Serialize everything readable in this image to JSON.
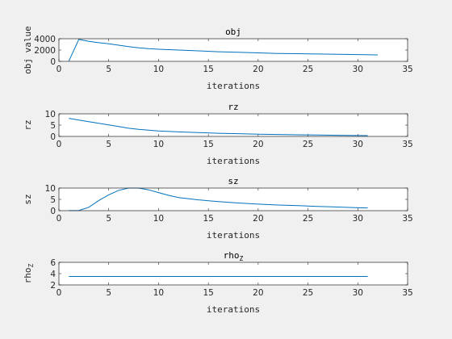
{
  "chart_data": [
    {
      "type": "line",
      "title": "obj",
      "xlabel": "iterations",
      "ylabel": "obj value",
      "xlim": [
        0,
        35
      ],
      "ylim": [
        0,
        4000
      ],
      "xticks": [
        0,
        5,
        10,
        15,
        20,
        25,
        30,
        35
      ],
      "yticks": [
        0,
        2000,
        4000
      ],
      "series": [
        {
          "color": "#0072bd",
          "x": [
            1,
            2,
            3,
            4,
            5,
            6,
            7,
            8,
            9,
            10,
            12,
            14,
            16,
            18,
            20,
            22,
            24,
            26,
            28,
            30,
            32
          ],
          "y": [
            50,
            3900,
            3550,
            3300,
            3100,
            2850,
            2600,
            2400,
            2250,
            2150,
            2000,
            1850,
            1700,
            1600,
            1500,
            1400,
            1350,
            1300,
            1250,
            1200,
            1150
          ]
        }
      ]
    },
    {
      "type": "line",
      "title": "rz",
      "xlabel": "iterations",
      "ylabel": "rz",
      "xlim": [
        0,
        35
      ],
      "ylim": [
        0,
        10
      ],
      "xticks": [
        0,
        5,
        10,
        15,
        20,
        25,
        30,
        35
      ],
      "yticks": [
        0,
        5,
        10
      ],
      "series": [
        {
          "color": "#0072bd",
          "x": [
            1,
            2,
            3,
            4,
            5,
            6,
            7,
            8,
            10,
            12,
            14,
            16,
            18,
            20,
            22,
            24,
            26,
            28,
            30,
            31
          ],
          "y": [
            8,
            7.2,
            6.5,
            5.8,
            5.1,
            4.4,
            3.6,
            3.1,
            2.4,
            2.0,
            1.7,
            1.4,
            1.2,
            1.0,
            0.85,
            0.7,
            0.6,
            0.5,
            0.4,
            0.35
          ]
        }
      ]
    },
    {
      "type": "line",
      "title": "sz",
      "xlabel": "iterations",
      "ylabel": "sz",
      "xlim": [
        0,
        35
      ],
      "ylim": [
        0,
        10
      ],
      "xticks": [
        0,
        5,
        10,
        15,
        20,
        25,
        30,
        35
      ],
      "yticks": [
        0,
        5,
        10
      ],
      "series": [
        {
          "color": "#0072bd",
          "x": [
            1,
            2,
            3,
            4,
            5,
            6,
            7,
            8,
            9,
            10,
            11,
            12,
            14,
            16,
            18,
            20,
            22,
            24,
            26,
            28,
            30,
            31
          ],
          "y": [
            0.05,
            0.1,
            1.5,
            4.5,
            7.0,
            9.0,
            10.0,
            10.0,
            9.2,
            8.0,
            6.8,
            5.8,
            4.8,
            4.0,
            3.4,
            2.9,
            2.5,
            2.2,
            1.9,
            1.6,
            1.3,
            1.2
          ]
        }
      ]
    },
    {
      "type": "line",
      "title": "rho",
      "title_subscript": "Z",
      "xlabel": "iterations",
      "ylabel": "rho",
      "ylabel_subscript": "Z",
      "xlim": [
        0,
        35
      ],
      "ylim": [
        2,
        6
      ],
      "xticks": [
        0,
        5,
        10,
        15,
        20,
        25,
        30,
        35
      ],
      "yticks": [
        2,
        4,
        6
      ],
      "series": [
        {
          "color": "#0072bd",
          "x": [
            1,
            31
          ],
          "y": [
            3.5,
            3.5
          ]
        }
      ]
    }
  ]
}
